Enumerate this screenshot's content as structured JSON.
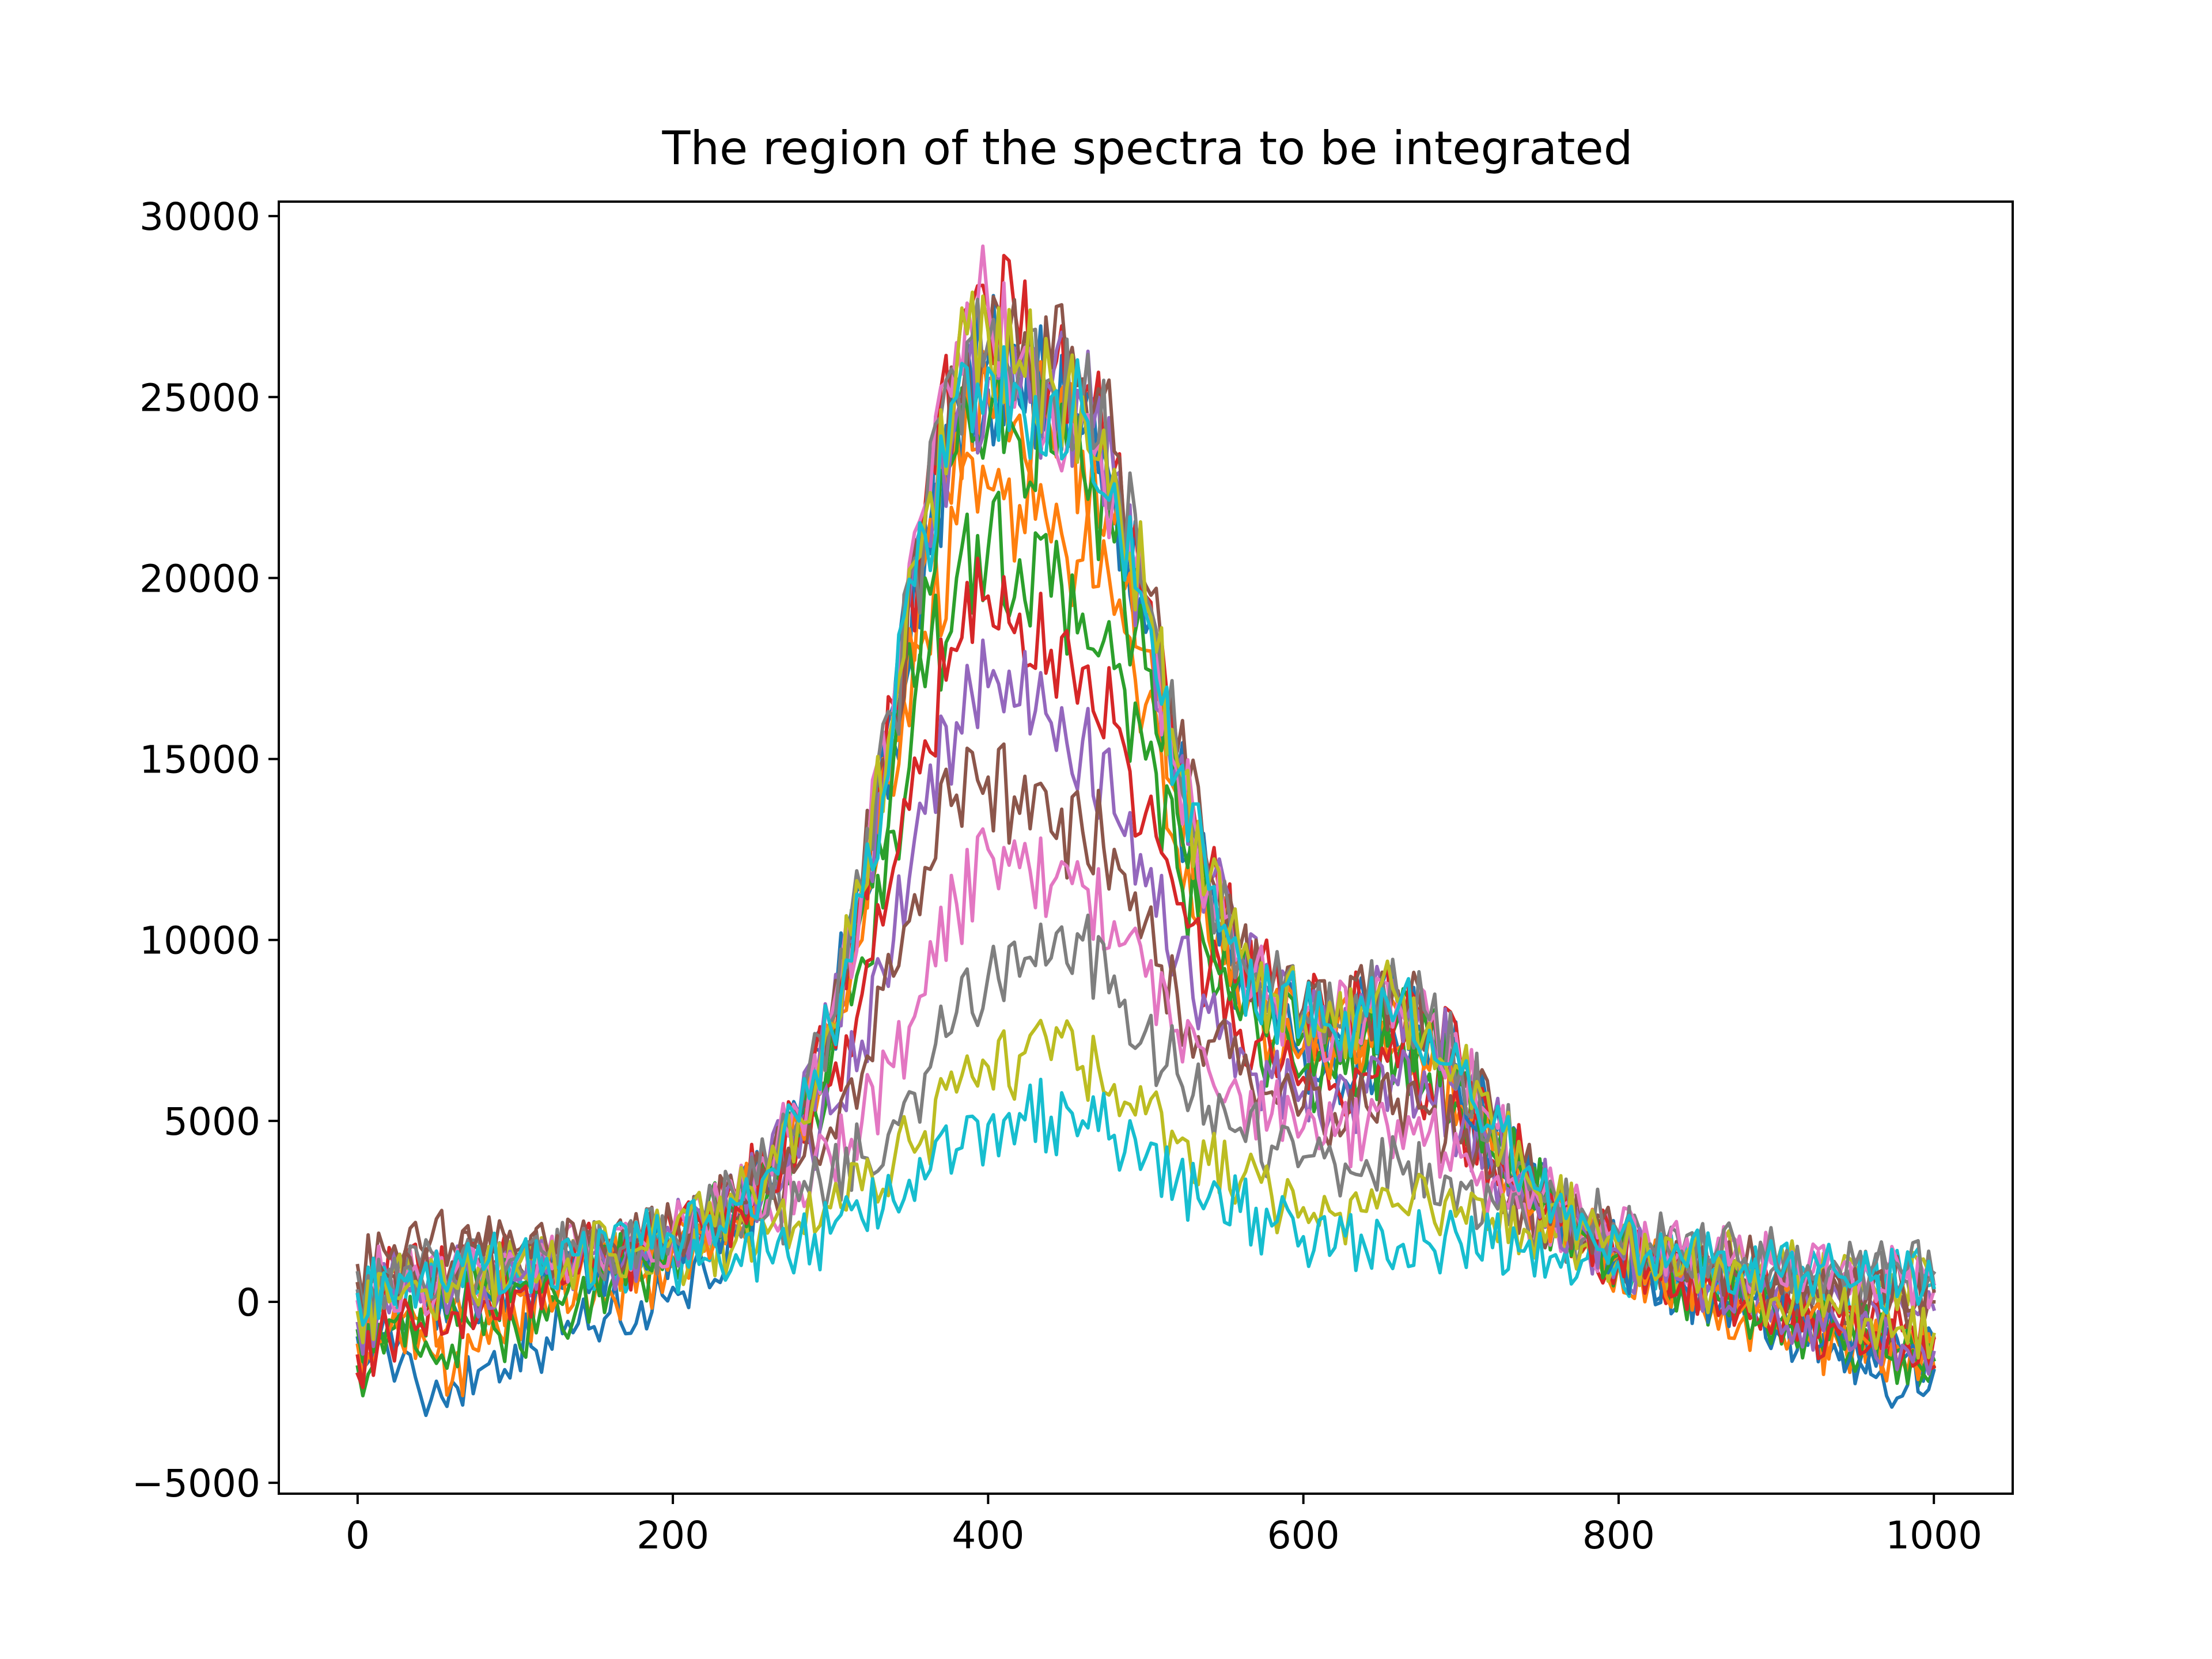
{
  "chart_data": {
    "type": "line",
    "title": "The region of the spectra to be integrated",
    "xlabel": "",
    "ylabel": "",
    "xlim": [
      -50,
      1050
    ],
    "ylim": [
      -5300,
      30400
    ],
    "xticks": [
      0,
      200,
      400,
      600,
      800,
      1000
    ],
    "xtick_labels": [
      "0",
      "200",
      "400",
      "600",
      "800",
      "1000"
    ],
    "yticks": [
      -5000,
      0,
      5000,
      10000,
      15000,
      20000,
      25000,
      30000
    ],
    "ytick_labels": [
      "−5000",
      "0",
      "5000",
      "10000",
      "15000",
      "20000",
      "25000",
      "30000"
    ],
    "grid": false,
    "legend": "none",
    "x": [
      0,
      20,
      40,
      60,
      80,
      100,
      120,
      140,
      160,
      180,
      200,
      220,
      240,
      260,
      280,
      300,
      320,
      340,
      360,
      380,
      400,
      420,
      440,
      460,
      480,
      500,
      520,
      540,
      560,
      580,
      600,
      620,
      640,
      660,
      680,
      700,
      720,
      740,
      760,
      780,
      800,
      820,
      840,
      860,
      880,
      900,
      920,
      940,
      960,
      980,
      1000
    ],
    "series": [
      {
        "color": "#1f77b4",
        "values": [
          200,
          -1500,
          -2600,
          -2200,
          -1800,
          -1200,
          -1000,
          -600,
          -300,
          0,
          400,
          900,
          1800,
          3000,
          4800,
          7500,
          11000,
          15500,
          20500,
          24500,
          25200,
          24800,
          24600,
          24000,
          22000,
          18500,
          14000,
          11000,
          9000,
          8000,
          7000,
          6500,
          6800,
          7000,
          6500,
          5500,
          4200,
          3200,
          2400,
          1800,
          1200,
          800,
          400,
          0,
          -400,
          -800,
          -1200,
          -1600,
          -2000,
          -2600,
          -1000
        ]
      },
      {
        "color": "#ff7f0e",
        "values": [
          -1500,
          -1000,
          -800,
          -2200,
          -600,
          -400,
          -300,
          0,
          300,
          600,
          1000,
          1400,
          2300,
          3300,
          4800,
          7000,
          10000,
          14000,
          18500,
          21500,
          22500,
          22000,
          21000,
          20500,
          19000,
          16500,
          12500,
          10000,
          8000,
          7200,
          7000,
          6800,
          7200,
          7000,
          6400,
          5400,
          4200,
          3000,
          2200,
          1600,
          1100,
          700,
          300,
          -100,
          -400,
          -700,
          -1000,
          -1200,
          -1400,
          -1600,
          -1000
        ]
      },
      {
        "color": "#2ca02c",
        "values": [
          -1800,
          -800,
          -1500,
          -1200,
          -900,
          -700,
          -500,
          0,
          400,
          700,
          1200,
          1700,
          2300,
          3000,
          4200,
          6500,
          9500,
          13000,
          17000,
          20000,
          20800,
          20500,
          19500,
          19000,
          17500,
          15000,
          12000,
          9500,
          7800,
          7000,
          6400,
          6200,
          6600,
          6800,
          6300,
          5300,
          4100,
          3000,
          2200,
          1600,
          1200,
          800,
          400,
          100,
          -200,
          -500,
          -800,
          -1100,
          -1300,
          -1500,
          -1800
        ]
      },
      {
        "color": "#d62728",
        "values": [
          -2000,
          1500,
          500,
          800,
          1000,
          1100,
          1200,
          1200,
          1300,
          1500,
          1900,
          2400,
          3000,
          3700,
          4500,
          6000,
          8500,
          12000,
          15500,
          18000,
          19500,
          19000,
          18000,
          17500,
          16000,
          13500,
          11000,
          9000,
          7500,
          6800,
          6200,
          6000,
          6300,
          6500,
          6000,
          5000,
          3900,
          2900,
          2100,
          1600,
          1200,
          900,
          600,
          400,
          200,
          0,
          -200,
          -400,
          -600,
          -800,
          -1000
        ]
      },
      {
        "color": "#9467bd",
        "values": [
          0,
          500,
          600,
          700,
          800,
          900,
          1000,
          1100,
          1300,
          1500,
          1800,
          2200,
          2600,
          3200,
          4000,
          5200,
          7200,
          10000,
          13500,
          16000,
          17000,
          16500,
          16000,
          15500,
          13500,
          11500,
          9500,
          8000,
          7000,
          6200,
          5800,
          5600,
          5800,
          6000,
          5600,
          4700,
          3700,
          2800,
          2200,
          1700,
          1300,
          1000,
          800,
          600,
          400,
          300,
          200,
          100,
          0,
          -100,
          -200
        ]
      },
      {
        "color": "#8c564b",
        "values": [
          1000,
          1200,
          1500,
          1600,
          1500,
          1400,
          1300,
          1400,
          1500,
          1600,
          1800,
          2100,
          2500,
          3000,
          3800,
          4800,
          6300,
          9000,
          12000,
          14000,
          14500,
          13500,
          13000,
          13000,
          12500,
          10500,
          8500,
          7200,
          6300,
          5800,
          5400,
          5200,
          5400,
          5600,
          5200,
          4400,
          3500,
          2700,
          2100,
          1700,
          1400,
          1100,
          900,
          700,
          600,
          500,
          400,
          300,
          200,
          100,
          0
        ]
      },
      {
        "color": "#e377c2",
        "values": [
          500,
          700,
          900,
          1000,
          1100,
          1200,
          1200,
          1300,
          1400,
          1500,
          1700,
          2000,
          2400,
          2800,
          3300,
          4000,
          5000,
          6500,
          8500,
          11000,
          12500,
          12000,
          11500,
          11500,
          10500,
          9000,
          7500,
          6400,
          5700,
          5200,
          4800,
          4600,
          4800,
          5000,
          4700,
          4000,
          3300,
          2700,
          2200,
          1800,
          1500,
          1300,
          1100,
          1000,
          900,
          800,
          700,
          600,
          500,
          400,
          300
        ]
      },
      {
        "color": "#7f7f7f",
        "values": [
          800,
          900,
          1000,
          1100,
          1200,
          1200,
          1300,
          1300,
          1400,
          1500,
          1600,
          1800,
          2100,
          2400,
          2800,
          3300,
          4000,
          5000,
          6300,
          8000,
          9000,
          9000,
          9500,
          10000,
          9000,
          7500,
          6300,
          5400,
          4800,
          4300,
          4000,
          3800,
          3900,
          4000,
          3800,
          3300,
          2800,
          2400,
          2100,
          1800,
          1600,
          1400,
          1300,
          1200,
          1100,
          1000,
          900,
          800,
          700,
          600,
          500
        ]
      },
      {
        "color": "#bcbd22",
        "values": [
          500,
          600,
          700,
          800,
          900,
          1000,
          1100,
          1100,
          1200,
          1300,
          1400,
          1500,
          1700,
          1900,
          2200,
          2600,
          3100,
          3800,
          4700,
          5800,
          6500,
          6800,
          6700,
          6500,
          6000,
          5200,
          4400,
          3800,
          3300,
          2900,
          2600,
          2400,
          2500,
          2700,
          2800,
          2600,
          2300,
          2000,
          1800,
          1600,
          1400,
          1300,
          1200,
          1100,
          1000,
          900,
          800,
          700,
          600,
          500,
          400
        ]
      },
      {
        "color": "#17becf",
        "values": [
          300,
          400,
          500,
          600,
          700,
          800,
          800,
          900,
          1000,
          1000,
          1100,
          1200,
          1300,
          1400,
          1600,
          1900,
          2300,
          2800,
          3400,
          4200,
          4900,
          5200,
          5100,
          5000,
          4600,
          4000,
          3400,
          2900,
          2500,
          2100,
          1800,
          1500,
          1400,
          1500,
          1600,
          1600,
          1500,
          1400,
          1300,
          1200,
          1100,
          1000,
          900,
          900,
          800,
          800,
          700,
          700,
          600,
          600,
          500
        ]
      },
      {
        "color": "#1f77b4",
        "values": [
          -1000,
          -600,
          -300,
          0,
          300,
          500,
          700,
          900,
          1100,
          1300,
          1600,
          2000,
          2700,
          3700,
          5200,
          7800,
          11500,
          16500,
          21500,
          25000,
          26000,
          25500,
          25000,
          24500,
          22500,
          19000,
          14500,
          11500,
          9500,
          8500,
          7800,
          7500,
          8000,
          8200,
          7600,
          6400,
          4900,
          3600,
          2600,
          1900,
          1300,
          900,
          500,
          200,
          -100,
          -400,
          -700,
          -1000,
          -1300,
          -1600,
          -1900
        ]
      },
      {
        "color": "#ff7f0e",
        "values": [
          -1200,
          -800,
          -500,
          -200,
          100,
          300,
          500,
          700,
          900,
          1200,
          1500,
          1900,
          2600,
          3500,
          5000,
          7500,
          11000,
          15500,
          20500,
          24000,
          25000,
          24500,
          24000,
          23500,
          21500,
          18000,
          14000,
          11000,
          9200,
          8300,
          7600,
          7300,
          7800,
          8000,
          7400,
          6200,
          4700,
          3500,
          2500,
          1800,
          1300,
          900,
          500,
          200,
          -100,
          -300,
          -600,
          -900,
          -1200,
          -1500,
          -1800
        ]
      },
      {
        "color": "#2ca02c",
        "values": [
          -800,
          -500,
          -200,
          100,
          300,
          500,
          700,
          900,
          1100,
          1300,
          1700,
          2100,
          2700,
          3600,
          5000,
          7300,
          10800,
          15000,
          20000,
          23500,
          24200,
          23800,
          23500,
          23000,
          21000,
          17500,
          13500,
          10800,
          9000,
          8100,
          7400,
          7100,
          7600,
          7800,
          7200,
          6000,
          4600,
          3400,
          2500,
          1800,
          1300,
          900,
          600,
          300,
          0,
          -300,
          -500,
          -800,
          -1000,
          -1300,
          -1600
        ]
      },
      {
        "color": "#d62728",
        "values": [
          -1500,
          -1000,
          -600,
          -300,
          0,
          300,
          500,
          800,
          1000,
          1300,
          1600,
          2000,
          2600,
          3500,
          5000,
          7600,
          11500,
          16500,
          22000,
          26000,
          27500,
          26500,
          25500,
          25000,
          23000,
          19500,
          15000,
          11800,
          9700,
          8700,
          8000,
          7700,
          8200,
          8400,
          7800,
          6500,
          5000,
          3700,
          2700,
          2000,
          1400,
          1000,
          600,
          300,
          0,
          -300,
          -600,
          -900,
          -1200,
          -1500,
          -1800
        ]
      },
      {
        "color": "#9467bd",
        "values": [
          -600,
          -300,
          0,
          200,
          400,
          600,
          800,
          1000,
          1200,
          1400,
          1700,
          2100,
          2700,
          3600,
          5100,
          7600,
          11200,
          16000,
          21000,
          24500,
          25500,
          25000,
          25200,
          24800,
          22800,
          19200,
          14800,
          11600,
          9500,
          8500,
          7800,
          7500,
          8000,
          8200,
          7600,
          6300,
          4900,
          3600,
          2600,
          1900,
          1400,
          1000,
          600,
          300,
          100,
          -200,
          -400,
          -700,
          -900,
          -1200,
          -1400
        ]
      },
      {
        "color": "#8c564b",
        "values": [
          500,
          700,
          900,
          1100,
          1300,
          1400,
          1500,
          1600,
          1700,
          1800,
          2000,
          2300,
          2800,
          3700,
          5200,
          7800,
          11500,
          16300,
          21500,
          25000,
          26200,
          25800,
          25800,
          25500,
          23500,
          19800,
          15200,
          11900,
          9800,
          8800,
          8100,
          7800,
          8300,
          8600,
          7900,
          6600,
          5100,
          3800,
          2800,
          2100,
          1700,
          1400,
          1200,
          1000,
          900,
          800,
          700,
          600,
          500,
          400,
          300
        ]
      },
      {
        "color": "#e377c2",
        "values": [
          0,
          300,
          500,
          700,
          900,
          1100,
          1200,
          1400,
          1500,
          1700,
          1900,
          2200,
          2800,
          3700,
          5200,
          7800,
          11500,
          16600,
          22000,
          26500,
          27500,
          26000,
          25000,
          24500,
          22500,
          19000,
          14700,
          11500,
          9500,
          8500,
          7900,
          7600,
          8100,
          8300,
          7700,
          6400,
          5000,
          3700,
          2800,
          2200,
          1800,
          1500,
          1300,
          1200,
          1100,
          1000,
          900,
          800,
          700,
          600,
          500
        ]
      },
      {
        "color": "#7f7f7f",
        "values": [
          300,
          500,
          700,
          900,
          1000,
          1200,
          1300,
          1400,
          1500,
          1700,
          1900,
          2200,
          2800,
          3700,
          5100,
          7700,
          11300,
          16200,
          21500,
          25500,
          26500,
          25800,
          25500,
          25000,
          23000,
          19500,
          15000,
          11700,
          9600,
          8600,
          8000,
          7700,
          8200,
          8400,
          7800,
          6500,
          5000,
          3800,
          2900,
          2300,
          1900,
          1600,
          1400,
          1300,
          1200,
          1100,
          1000,
          900,
          900,
          800,
          800
        ]
      },
      {
        "color": "#bcbd22",
        "values": [
          -300,
          0,
          300,
          500,
          700,
          900,
          1000,
          1200,
          1300,
          1500,
          1800,
          2100,
          2700,
          3600,
          5100,
          7700,
          11300,
          16200,
          21700,
          25800,
          26800,
          26000,
          25500,
          25000,
          23000,
          19300,
          14900,
          11600,
          9500,
          8500,
          7900,
          7600,
          8100,
          8300,
          7700,
          6400,
          4900,
          3600,
          2700,
          2000,
          1500,
          1100,
          800,
          500,
          300,
          100,
          -100,
          -300,
          -500,
          -700,
          -900
        ]
      },
      {
        "color": "#17becf",
        "values": [
          200,
          400,
          600,
          800,
          900,
          1100,
          1200,
          1300,
          1400,
          1600,
          1800,
          2100,
          2700,
          3600,
          5000,
          7600,
          11200,
          16000,
          21200,
          25000,
          25800,
          25200,
          25000,
          24600,
          22600,
          19000,
          14600,
          11400,
          9300,
          8300,
          7700,
          7400,
          7900,
          8100,
          7500,
          6300,
          4800,
          3600,
          2700,
          2100,
          1700,
          1400,
          1200,
          1100,
          1000,
          900,
          800,
          700,
          600,
          500,
          400
        ]
      }
    ]
  }
}
